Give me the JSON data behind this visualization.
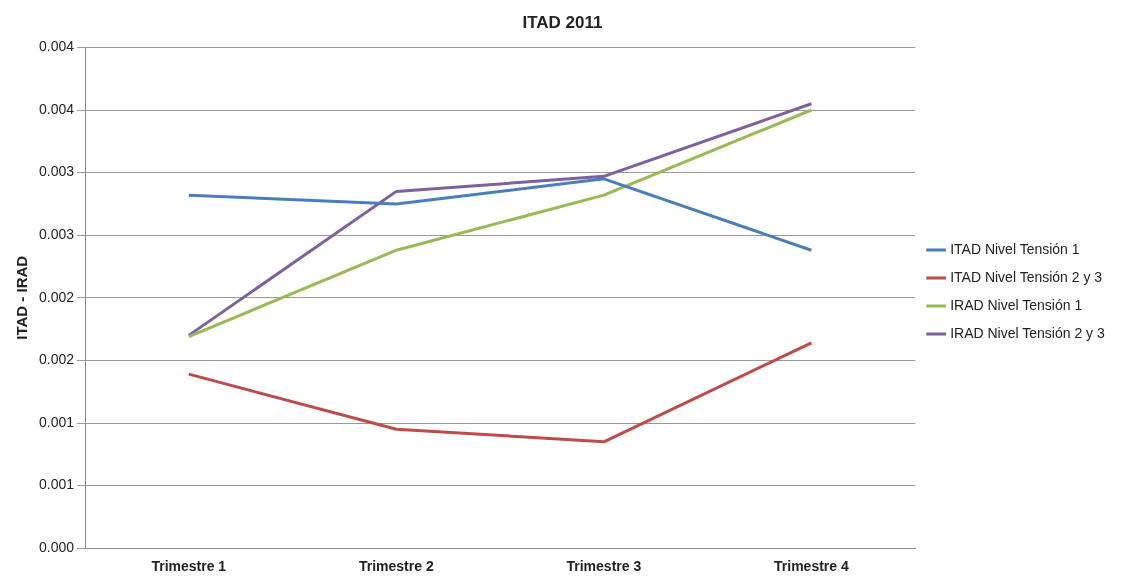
{
  "chart_data": {
    "type": "line",
    "title": "ITAD 2011",
    "ylabel": "ITAD - IRAD",
    "categories": [
      "Trimestre 1",
      "Trimestre 2",
      "Trimestre 3",
      "Trimestre 4"
    ],
    "series": [
      {
        "name": "ITAD Nivel Tensión 1",
        "color": "#4a7ebb",
        "values": [
          0.00282,
          0.00275,
          0.00295,
          0.00238
        ]
      },
      {
        "name": "ITAD Nivel Tensión 2 y 3",
        "color": "#be4b48",
        "values": [
          0.00139,
          0.00095,
          0.00085,
          0.00164
        ]
      },
      {
        "name": "IRAD Nivel Tensión 1",
        "color": "#98b954",
        "values": [
          0.00169,
          0.00238,
          0.00282,
          0.0035
        ]
      },
      {
        "name": "IRAD Nivel Tensión 2 y 3",
        "color": "#7d60a0",
        "values": [
          0.0017,
          0.00285,
          0.00297,
          0.00355
        ]
      }
    ],
    "ylim": [
      0,
      0.004
    ],
    "yticks": [
      {
        "value": 0,
        "label": "0.000"
      },
      {
        "value": 0.0005,
        "label": "0.001"
      },
      {
        "value": 0.001,
        "label": "0.001"
      },
      {
        "value": 0.0015,
        "label": "0.002"
      },
      {
        "value": 0.002,
        "label": "0.002"
      },
      {
        "value": 0.0025,
        "label": "0.003"
      },
      {
        "value": 0.003,
        "label": "0.003"
      },
      {
        "value": 0.0035,
        "label": "0.004"
      },
      {
        "value": 0.004,
        "label": "0.004"
      }
    ],
    "grid": "y",
    "legend": "right",
    "marker": "none",
    "line_style": "solid"
  }
}
